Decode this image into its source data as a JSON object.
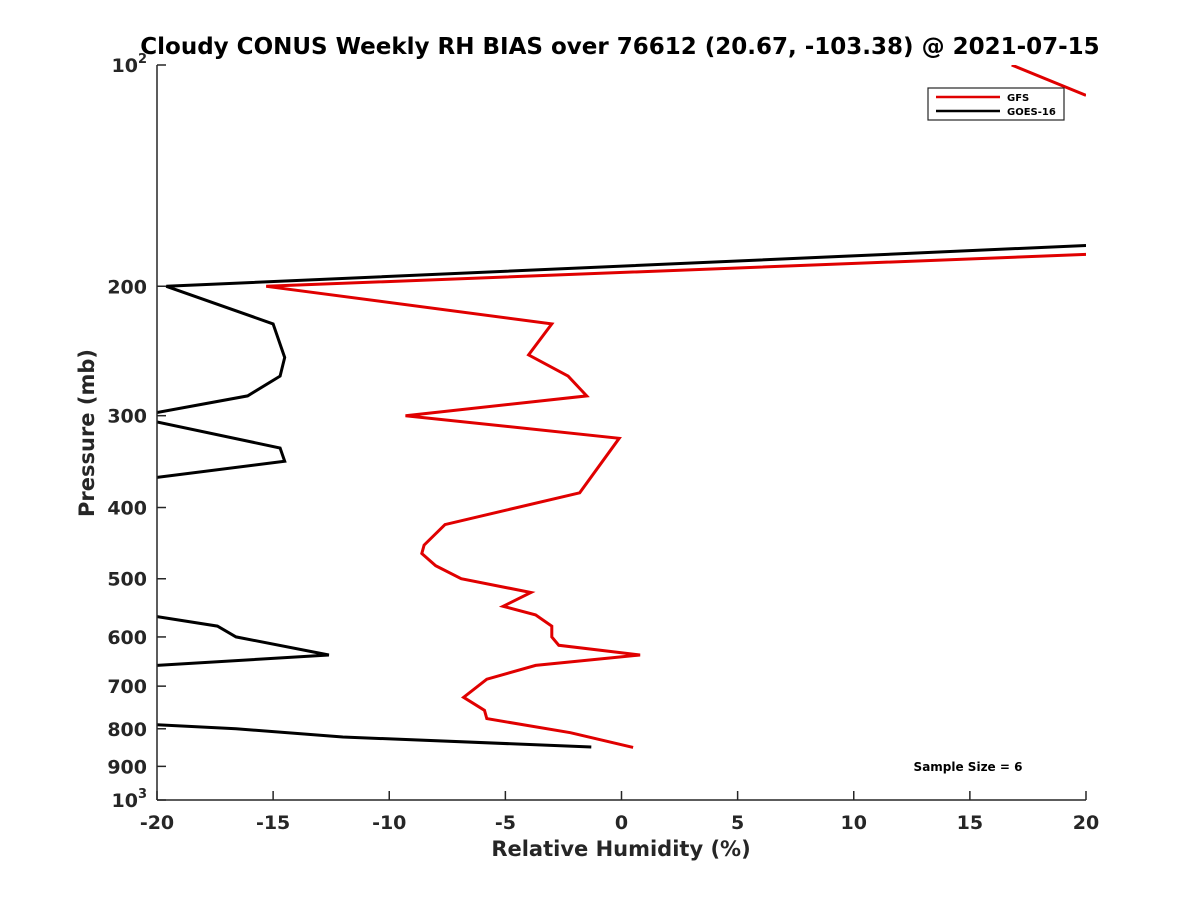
{
  "chart_data": {
    "type": "line",
    "title": "Cloudy CONUS Weekly RH BIAS over 76612 (20.67, -103.38) @ 2021-07-15",
    "xlabel": "Relative Humidity (%)",
    "ylabel": "Pressure (mb)",
    "xlim": [
      -20,
      20
    ],
    "ylim": [
      100,
      1000
    ],
    "yscale": "log",
    "y_reversed": true,
    "x_ticks": [
      "-20",
      "-15",
      "-10",
      "-5",
      "0",
      "5",
      "10",
      "15",
      "20"
    ],
    "y_ticks": [
      {
        "value": 100,
        "base": "10",
        "exp": "2"
      },
      {
        "value": 200,
        "label": "200"
      },
      {
        "value": 300,
        "label": "300"
      },
      {
        "value": 400,
        "label": "400"
      },
      {
        "value": 500,
        "label": "500"
      },
      {
        "value": 600,
        "label": "600"
      },
      {
        "value": 700,
        "label": "700"
      },
      {
        "value": 800,
        "label": "800"
      },
      {
        "value": 900,
        "label": "900"
      },
      {
        "value": 1000,
        "base": "10",
        "exp": "3"
      }
    ],
    "legend_position": "top-right",
    "annotation": "Sample Size = 6",
    "series": [
      {
        "name": "GFS",
        "color": "#e00000",
        "segments": [
          [
            [
              16.8,
              100
            ],
            [
              20.0,
              110
            ]
          ],
          [
            [
              20.0,
              181
            ],
            [
              -15.3,
              200
            ],
            [
              -3.0,
              225
            ],
            [
              -4.0,
              248
            ],
            [
              -2.3,
              265
            ],
            [
              -1.5,
              282
            ],
            [
              -9.3,
              300
            ],
            [
              -0.1,
              322
            ],
            [
              -1.8,
              382
            ],
            [
              -7.6,
              422
            ],
            [
              -8.5,
              450
            ],
            [
              -8.6,
              462
            ],
            [
              -8.0,
              480
            ],
            [
              -6.9,
              500
            ],
            [
              -3.9,
              522
            ],
            [
              -5.1,
              545
            ],
            [
              -3.7,
              560
            ],
            [
              -3.0,
              580
            ],
            [
              -3.0,
              600
            ],
            [
              -2.7,
              616
            ],
            [
              0.8,
              635
            ],
            [
              -3.7,
              656
            ],
            [
              -5.8,
              685
            ],
            [
              -6.8,
              725
            ],
            [
              -5.9,
              755
            ],
            [
              -5.8,
              775
            ],
            [
              -2.2,
              810
            ],
            [
              0.5,
              848
            ]
          ]
        ]
      },
      {
        "name": "GOES-16",
        "color": "#000000",
        "segments": [
          [
            [
              20.0,
              176
            ],
            [
              -19.6,
              200
            ],
            [
              -15.0,
              225
            ],
            [
              -14.5,
              250
            ],
            [
              -14.7,
              265
            ],
            [
              -16.1,
              282
            ],
            [
              -20.0,
              297
            ]
          ],
          [
            [
              -20.0,
              306
            ],
            [
              -14.7,
              332
            ],
            [
              -14.5,
              346
            ],
            [
              -20.0,
              364
            ]
          ],
          [
            [
              -20.0,
              563
            ],
            [
              -17.4,
              580
            ],
            [
              -16.6,
              600
            ],
            [
              -12.6,
              635
            ],
            [
              -20.0,
              656
            ]
          ],
          [
            [
              -20.0,
              790
            ],
            [
              -16.6,
              800
            ],
            [
              -12.0,
              821
            ],
            [
              -1.3,
              847
            ]
          ]
        ]
      }
    ]
  }
}
